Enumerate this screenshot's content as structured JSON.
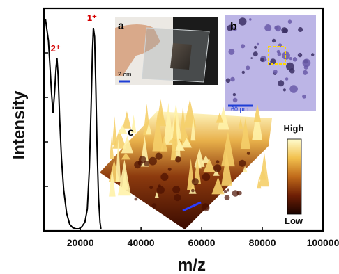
{
  "chart_data": {
    "type": "line",
    "xlabel": "m/z",
    "ylabel": "Intensity",
    "xlim": [
      8000,
      100000
    ],
    "xticks": [
      20000,
      40000,
      60000,
      80000,
      100000
    ],
    "xtick_labels": [
      "20000",
      "40000",
      "60000",
      "80000",
      "100000"
    ],
    "ylim": [
      0,
      1
    ],
    "series": [
      {
        "x": [
          8500,
          9500,
          10500,
          11000,
          11500,
          12000,
          12300,
          12700,
          13200,
          13800,
          14500,
          15500,
          16500,
          17500,
          18500,
          19500,
          20500,
          21500,
          22300,
          23000,
          23600,
          24000,
          24300,
          24700,
          25100,
          25500,
          26000,
          26500,
          26800
        ],
        "y": [
          0.96,
          0.86,
          0.62,
          0.53,
          0.62,
          0.74,
          0.78,
          0.7,
          0.5,
          0.32,
          0.18,
          0.07,
          0.02,
          0.005,
          0.0,
          0.0,
          0.01,
          0.03,
          0.09,
          0.28,
          0.58,
          0.82,
          0.92,
          0.88,
          0.66,
          0.38,
          0.14,
          0.03,
          0.0
        ]
      }
    ],
    "annotations": [
      {
        "text": "1⁺",
        "x": 24300,
        "y": 0.92
      },
      {
        "text": "2⁺",
        "x": 12300,
        "y": 0.78
      }
    ]
  },
  "insets": {
    "a": {
      "label": "a",
      "scale_text": "2 cm",
      "scale_color": "#1f3fd6"
    },
    "b": {
      "label": "b",
      "scale_text": "60 μm",
      "scale_color": "#1f3fd6",
      "highlight_color": "#ffd700"
    },
    "c": {
      "label": "c"
    }
  },
  "colorbar": {
    "high": "High",
    "low": "Low",
    "colors": [
      "#fffdd0",
      "#f2c14e",
      "#c06a1a",
      "#6e1f05",
      "#1a0400"
    ]
  },
  "colors": {
    "peak_label": "#d50000",
    "line": "#000000"
  }
}
